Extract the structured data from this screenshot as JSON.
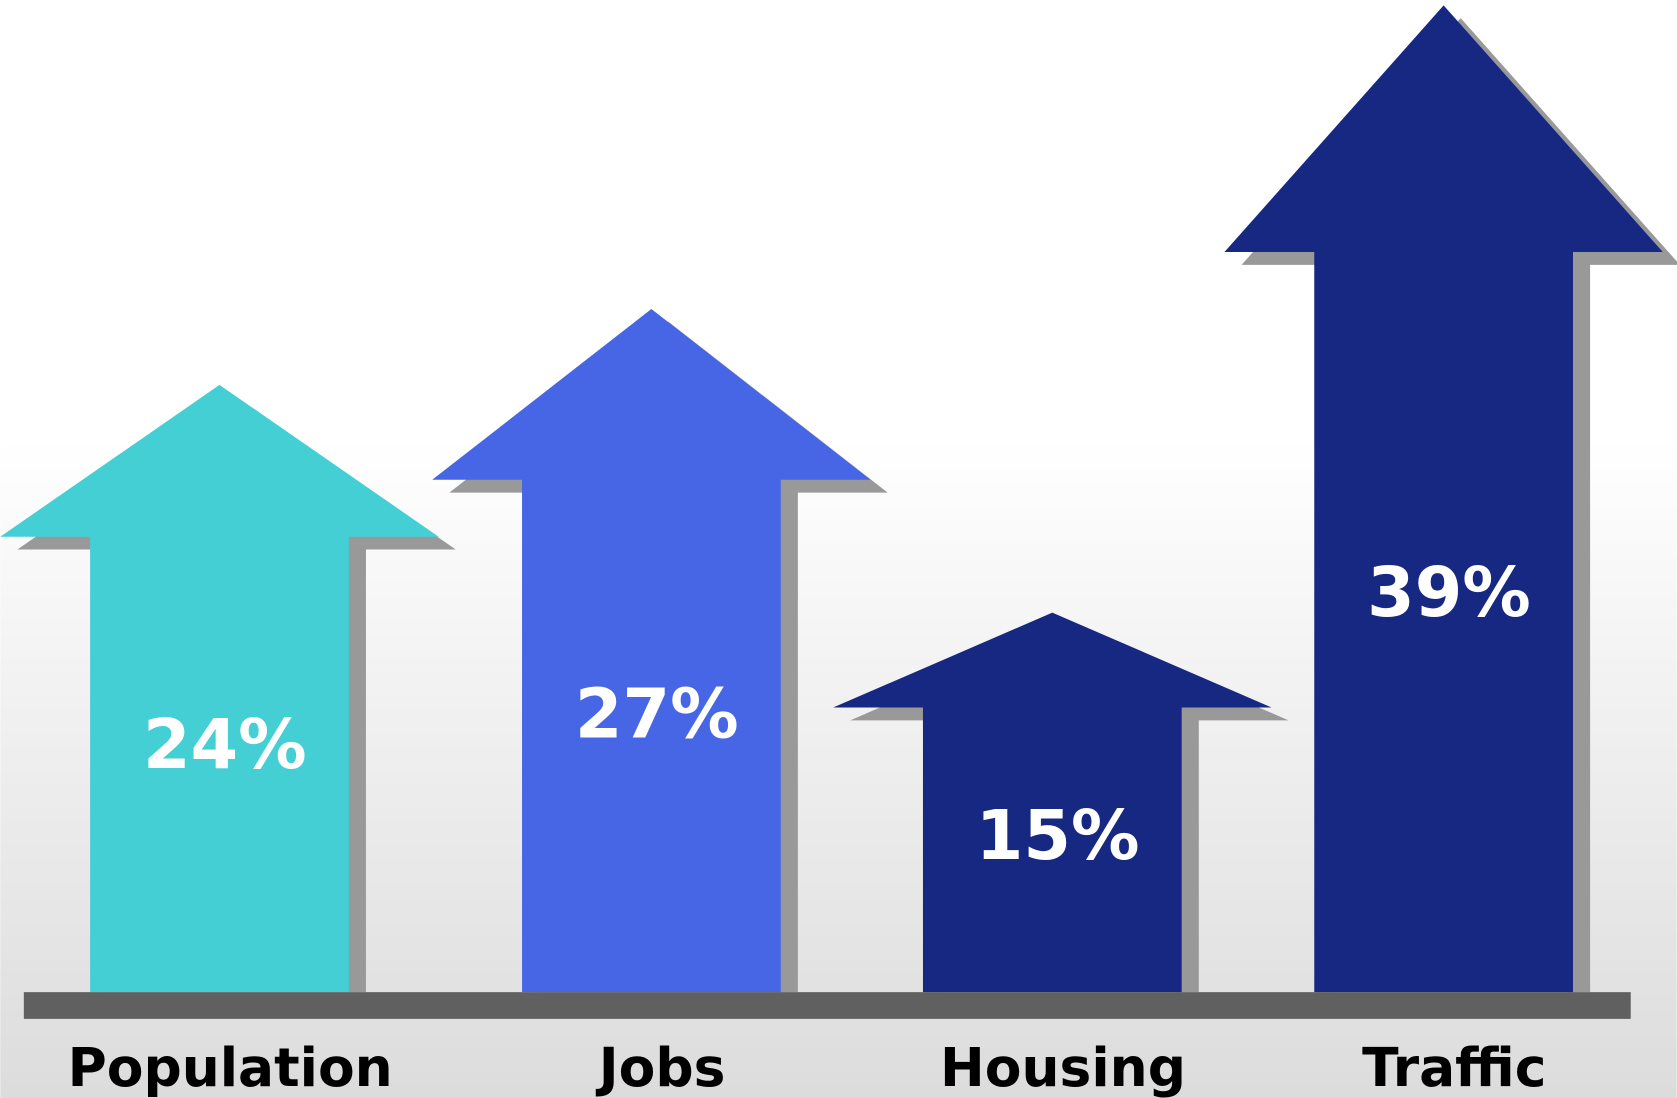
{
  "chart_data": {
    "type": "arrow",
    "categories": [
      "Population",
      "Jobs",
      "Housing",
      "Traffic"
    ],
    "values": [
      24,
      27,
      15,
      39
    ],
    "value_labels": [
      "24%",
      "27%",
      "15%",
      "39%"
    ],
    "colors": [
      "#43cfd4",
      "#4766e5",
      "#172882",
      "#172882"
    ]
  }
}
